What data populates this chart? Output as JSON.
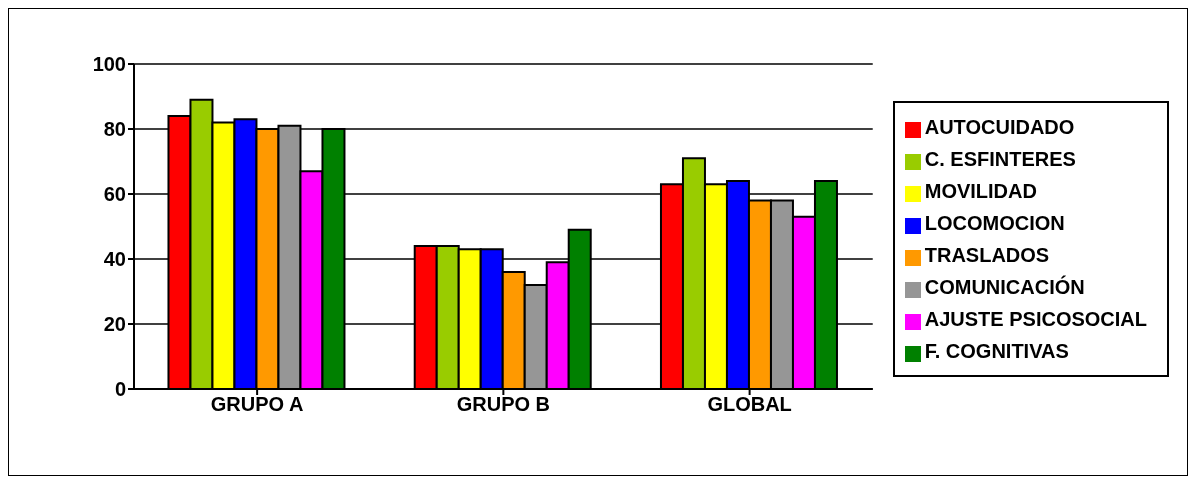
{
  "chart_data": {
    "type": "bar",
    "categories": [
      "GRUPO A",
      "GRUPO B",
      "GLOBAL"
    ],
    "series": [
      {
        "name": "AUTOCUIDADO",
        "color": "#ff0000",
        "values": [
          84,
          44,
          63
        ]
      },
      {
        "name": "C. ESFINTERES",
        "color": "#99cc00",
        "values": [
          89,
          44,
          71
        ]
      },
      {
        "name": "MOVILIDAD",
        "color": "#ffff00",
        "values": [
          82,
          43,
          63
        ]
      },
      {
        "name": "LOCOMOCION",
        "color": "#0000ff",
        "values": [
          83,
          43,
          64
        ]
      },
      {
        "name": "TRASLADOS",
        "color": "#ff9900",
        "values": [
          80,
          36,
          58
        ]
      },
      {
        "name": "COMUNICACIÓN",
        "color": "#969696",
        "values": [
          81,
          32,
          58
        ]
      },
      {
        "name": "AJUSTE PSICOSOCIAL",
        "color": "#ff00ff",
        "values": [
          67,
          39,
          53
        ]
      },
      {
        "name": "F. COGNITIVAS",
        "color": "#008000",
        "values": [
          80,
          49,
          64
        ]
      }
    ],
    "ylim": [
      0,
      100
    ],
    "yticks": [
      0,
      20,
      40,
      60,
      80,
      100
    ],
    "grid": "y",
    "legend": "right"
  }
}
